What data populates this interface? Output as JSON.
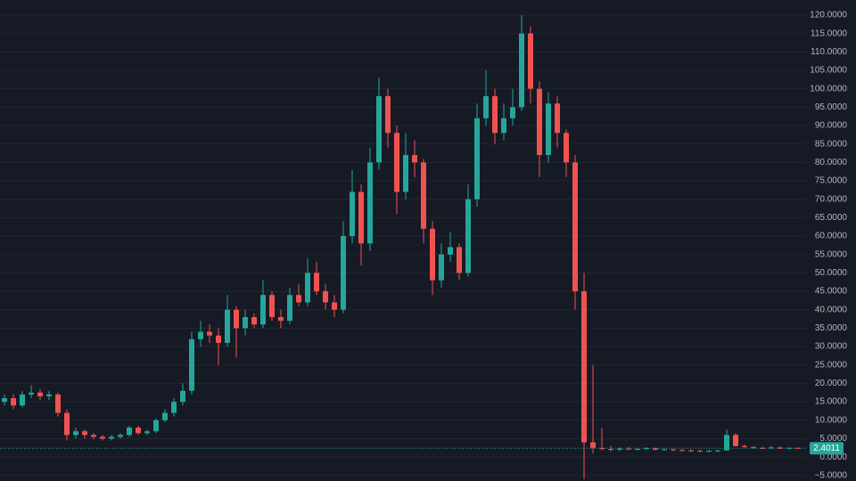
{
  "chart_data": {
    "type": "candlestick",
    "up_color": "#26a69a",
    "down_color": "#ef5350",
    "grid": true,
    "ylim": [
      -6.5,
      124.1
    ],
    "yticks": [
      {
        "value": -5,
        "label": "−5.0000"
      },
      {
        "value": 0,
        "label": "0.0000"
      },
      {
        "value": 5,
        "label": "5.0000"
      },
      {
        "value": 10,
        "label": "10.0000"
      },
      {
        "value": 15,
        "label": "15.0000"
      },
      {
        "value": 20,
        "label": "20.0000"
      },
      {
        "value": 25,
        "label": "25.0000"
      },
      {
        "value": 30,
        "label": "30.0000"
      },
      {
        "value": 35,
        "label": "35.0000"
      },
      {
        "value": 40,
        "label": "40.0000"
      },
      {
        "value": 45,
        "label": "45.0000"
      },
      {
        "value": 50,
        "label": "50.0000"
      },
      {
        "value": 55,
        "label": "55.0000"
      },
      {
        "value": 60,
        "label": "60.0000"
      },
      {
        "value": 65,
        "label": "65.0000"
      },
      {
        "value": 70,
        "label": "70.0000"
      },
      {
        "value": 75,
        "label": "75.0000"
      },
      {
        "value": 80,
        "label": "80.0000"
      },
      {
        "value": 85,
        "label": "85.0000"
      },
      {
        "value": 90,
        "label": "90.0000"
      },
      {
        "value": 95,
        "label": "95.0000"
      },
      {
        "value": 100,
        "label": "100.0000"
      },
      {
        "value": 105,
        "label": "105.0000"
      },
      {
        "value": 110,
        "label": "110.0000"
      },
      {
        "value": 115,
        "label": "115.0000"
      },
      {
        "value": 120,
        "label": "120.0000"
      }
    ],
    "open": [
      15,
      16,
      14,
      17,
      17.5,
      16.5,
      17,
      12,
      6,
      7,
      6,
      5.5,
      5,
      5.5,
      6,
      8,
      6.5,
      7,
      10,
      12,
      15,
      18,
      32,
      34,
      33,
      31,
      40,
      35,
      38,
      36,
      44,
      38,
      37,
      44,
      42,
      50,
      45,
      42,
      40,
      60,
      72,
      58,
      80,
      98,
      88,
      72,
      82,
      80,
      62,
      48,
      55,
      57,
      50,
      70,
      92,
      98,
      88,
      92,
      95,
      115,
      100,
      82,
      96,
      88,
      80,
      45,
      4,
      2.5,
      2.2,
      2,
      2.3,
      2.1,
      2.2,
      2.4,
      2,
      2.1,
      1.9,
      1.8,
      1.7,
      1.6,
      1.7,
      1.8,
      6,
      3,
      2.7,
      2.5,
      2.4,
      2.6,
      2.3,
      2.5
    ],
    "high": [
      17,
      17,
      18,
      19.5,
      18.5,
      18,
      17.5,
      13,
      8,
      7.5,
      6.5,
      6,
      6,
      6.5,
      8.5,
      8.5,
      7.5,
      10.5,
      13,
      16,
      20,
      34,
      37,
      36,
      35,
      44,
      41,
      40,
      39,
      48,
      45,
      40,
      46,
      47,
      54,
      53,
      47,
      44,
      64,
      78,
      74,
      84,
      103,
      100,
      90,
      88,
      86,
      81,
      64,
      58,
      61,
      58,
      74,
      96,
      105,
      100,
      96,
      100,
      120,
      117,
      102,
      99,
      98,
      89,
      82,
      50,
      25,
      8,
      3,
      2.6,
      2.8,
      2.5,
      2.7,
      2.6,
      2.4,
      2.3,
      2.2,
      2.1,
      2,
      1.9,
      2,
      7.5,
      6.5,
      3.4,
      3,
      2.8,
      3,
      2.8,
      2.6,
      2.6
    ],
    "low": [
      14,
      13,
      13.5,
      16,
      15.5,
      15.5,
      11,
      4.5,
      5,
      5,
      4.8,
      4.5,
      4.5,
      5,
      5.5,
      6,
      6,
      6.5,
      9.5,
      11,
      14,
      17,
      30,
      31,
      25,
      30,
      27,
      33,
      35,
      35,
      37,
      35,
      36,
      41,
      41,
      44,
      40,
      38,
      39,
      58,
      52,
      56,
      78,
      84,
      66,
      70,
      76,
      58,
      44,
      46,
      53,
      48,
      49,
      68,
      90,
      85,
      86,
      90,
      94,
      96,
      76,
      80,
      84,
      76,
      40,
      -6,
      1,
      1.8,
      1.5,
      1.6,
      1.9,
      1.8,
      1.9,
      1.8,
      1.7,
      1.6,
      1.5,
      1.4,
      1.3,
      1.3,
      1.4,
      1.7,
      2.8,
      2.5,
      2.3,
      2.2,
      2.2,
      2.2,
      2.1,
      2.2
    ],
    "close": [
      16,
      14,
      17,
      17.5,
      16.5,
      17,
      12,
      6,
      7,
      6,
      5.5,
      5,
      5.5,
      6,
      8,
      6.5,
      7,
      10,
      12,
      15,
      18,
      32,
      34,
      33,
      31,
      40,
      35,
      38,
      36,
      44,
      38,
      37,
      44,
      42,
      50,
      45,
      42,
      40,
      60,
      72,
      58,
      80,
      98,
      88,
      72,
      82,
      80,
      62,
      48,
      55,
      57,
      50,
      70,
      92,
      98,
      88,
      92,
      95,
      115,
      100,
      82,
      96,
      88,
      80,
      45,
      4,
      2.5,
      2.2,
      2,
      2.3,
      2.1,
      2.2,
      2.4,
      2,
      2.1,
      1.9,
      1.8,
      1.7,
      1.6,
      1.7,
      1.8,
      6,
      3,
      2.7,
      2.5,
      2.4,
      2.6,
      2.3,
      2.5,
      2.4011
    ]
  }
}
